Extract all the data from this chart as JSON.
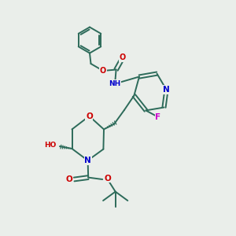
{
  "bg_color": "#eaeeea",
  "bond_color": "#2d6b5a",
  "bond_width": 1.4,
  "atom_colors": {
    "O": "#cc0000",
    "N": "#0000cc",
    "F": "#cc00cc",
    "C": "#2d6b5a"
  },
  "font_size": 6.5,
  "fig_size": [
    3.0,
    3.0
  ],
  "dpi": 100
}
